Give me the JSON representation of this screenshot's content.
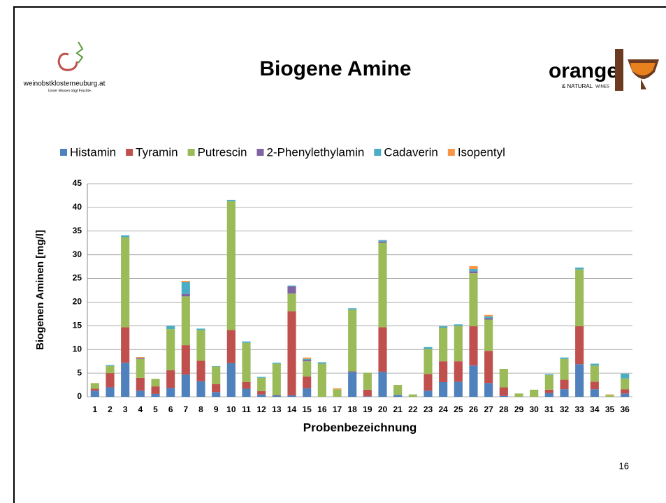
{
  "header": {
    "logo_left_text": "weinobstklosterneuburg.at",
    "logo_left_slogan": "Unser Wissen trägt Früchte.",
    "title": "Biogene Amine",
    "logo_right_text": "orange",
    "logo_right_sub1": "& NATURAL",
    "logo_right_sub2": "WINES"
  },
  "chart_data": {
    "type": "stacked_bar",
    "categories": [
      "1",
      "2",
      "3",
      "4",
      "5",
      "6",
      "7",
      "8",
      "9",
      "10",
      "11",
      "12",
      "13",
      "14",
      "15",
      "16",
      "17",
      "18",
      "19",
      "20",
      "21",
      "22",
      "23",
      "24",
      "25",
      "26",
      "27",
      "28",
      "29",
      "30",
      "31",
      "32",
      "33",
      "34",
      "35",
      "36"
    ],
    "series": [
      {
        "name": "Histamin",
        "color": "#4f81bd",
        "values": [
          1.3,
          2.0,
          7.2,
          1.3,
          0.6,
          1.9,
          4.7,
          3.3,
          1.0,
          7.1,
          1.7,
          0.5,
          0.3,
          0.3,
          1.8,
          0,
          0,
          5.3,
          0.1,
          5.3,
          0.4,
          0,
          1.3,
          3.1,
          3.2,
          6.6,
          2.9,
          0.2,
          0,
          0,
          0.8,
          1.6,
          6.9,
          1.6,
          0,
          0.7
        ]
      },
      {
        "name": "Tyramin",
        "color": "#c0504d",
        "values": [
          0.4,
          3.0,
          7.5,
          2.7,
          1.6,
          3.7,
          6.2,
          4.3,
          1.7,
          7.0,
          1.4,
          0.7,
          0.1,
          17.8,
          2.5,
          0,
          0,
          0.1,
          1.4,
          9.4,
          0,
          0,
          3.5,
          4.4,
          4.3,
          8.3,
          6.8,
          1.8,
          0,
          0,
          0.7,
          2.0,
          8.0,
          1.6,
          0,
          0.9
        ]
      },
      {
        "name": "Putrescin",
        "color": "#9bbb59",
        "values": [
          1.2,
          1.5,
          19.0,
          4.0,
          1.6,
          8.7,
          10.3,
          6.5,
          3.7,
          27.2,
          8.3,
          2.8,
          6.6,
          3.7,
          3.2,
          7.0,
          1.6,
          13.0,
          3.6,
          17.8,
          2.1,
          0.5,
          5.3,
          7.1,
          7.5,
          11.2,
          6.6,
          3.9,
          0.7,
          1.5,
          3.1,
          4.4,
          12.0,
          3.4,
          0.4,
          2.3
        ]
      },
      {
        "name": "2-Phenylethylamin",
        "color": "#8064a2",
        "values": [
          0,
          0,
          0,
          0.2,
          0,
          0,
          0.5,
          0,
          0,
          0,
          0,
          0,
          0,
          1.5,
          0.3,
          0,
          0,
          0,
          0,
          0.3,
          0,
          0,
          0,
          0,
          0,
          0.4,
          0.3,
          0,
          0,
          0,
          0,
          0,
          0,
          0,
          0,
          0
        ]
      },
      {
        "name": "Cadaverin",
        "color": "#4bacc6",
        "values": [
          0,
          0.2,
          0.4,
          0,
          0,
          0.7,
          2.5,
          0.3,
          0.1,
          0.3,
          0.3,
          0.2,
          0.2,
          0.2,
          0.2,
          0.3,
          0,
          0.3,
          0,
          0.3,
          0,
          0,
          0.4,
          0.3,
          0.3,
          0.5,
          0.4,
          0,
          0,
          0,
          0.2,
          0.3,
          0.4,
          0.4,
          0,
          1.0
        ]
      },
      {
        "name": "Isopentyl",
        "color": "#f79646",
        "values": [
          0,
          0,
          0,
          0.2,
          0,
          0,
          0.3,
          0,
          0,
          0,
          0,
          0,
          0,
          0,
          0.3,
          0,
          0.2,
          0,
          0,
          0,
          0,
          0,
          0,
          0,
          0,
          0.6,
          0.3,
          0,
          0,
          0,
          0,
          0,
          0,
          0,
          0.1,
          0
        ]
      }
    ],
    "y_label": "Biogenen Aminen [mg/l]",
    "x_label": "Probenbezeichnung",
    "ylim": [
      0,
      45
    ],
    "yticks": [
      0,
      5,
      10,
      15,
      20,
      25,
      30,
      35,
      40,
      45
    ],
    "grid": true,
    "legend": "top"
  },
  "footer": {
    "page_number": "16"
  }
}
